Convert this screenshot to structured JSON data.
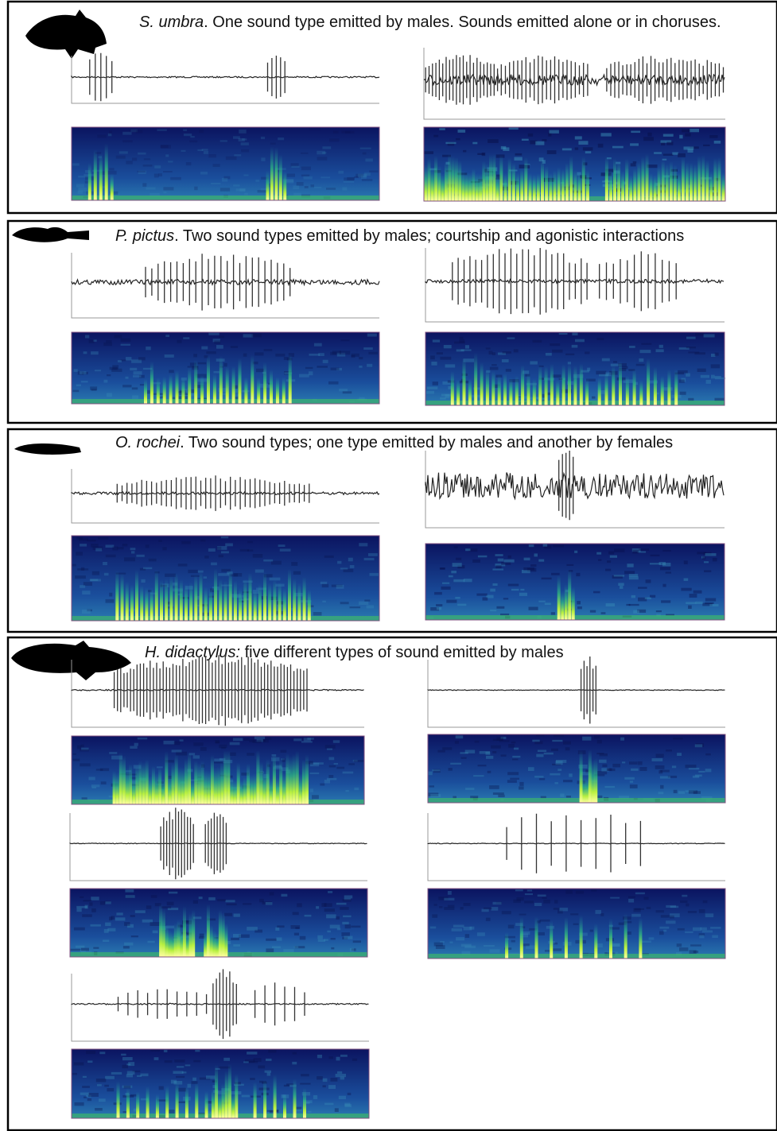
{
  "panels": [
    {
      "species": "S. umbra",
      "description": ". One sound type emitted by males. Sounds emitted alone or in choruses."
    },
    {
      "species": "P. pictus",
      "description": ". Two sound types emitted by males; courtship and agonistic interactions"
    },
    {
      "species": "O. rochei",
      "description": ". Two sound types;  one type emitted by males and another  by females"
    },
    {
      "species": "H. didactylus:",
      "description": " five different types of sound emitted by males"
    }
  ]
}
